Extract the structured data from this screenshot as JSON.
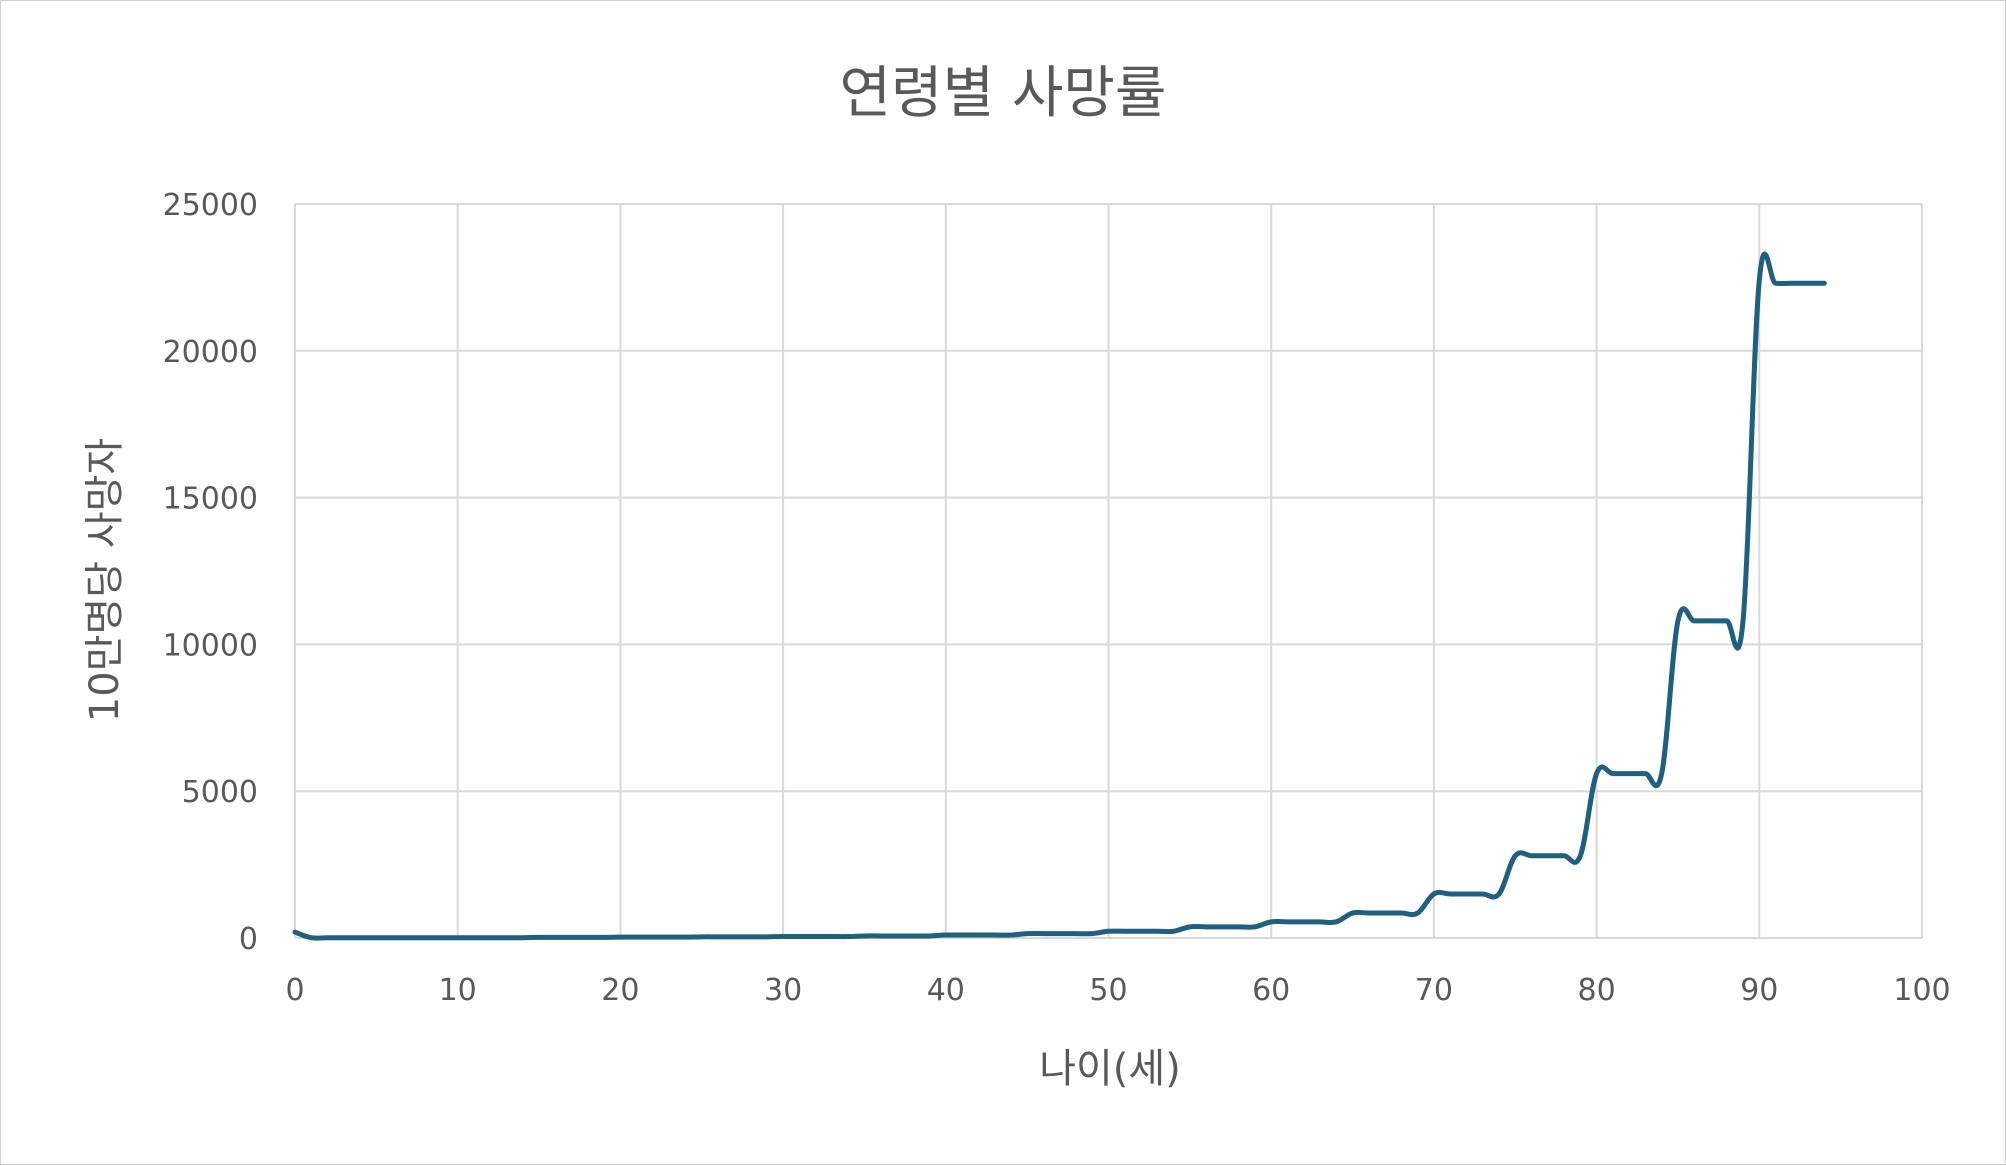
{
  "chart_data": {
    "type": "line",
    "title": "연령별 사망률",
    "xlabel": "나이(세)",
    "ylabel": "10만명당 사망자",
    "xlim": [
      0,
      100
    ],
    "ylim": [
      0,
      25000
    ],
    "x_ticks": [
      "0",
      "10",
      "20",
      "30",
      "40",
      "50",
      "60",
      "70",
      "80",
      "90",
      "100"
    ],
    "y_ticks": [
      "0",
      "5000",
      "10000",
      "15000",
      "20000",
      "25000"
    ],
    "grid": true,
    "legend": "none",
    "line_color": "#1f5f7f",
    "series": [
      {
        "x": [
          0,
          1,
          2,
          3,
          4,
          5,
          6,
          7,
          8,
          9,
          10,
          11,
          12,
          13,
          14,
          15,
          16,
          17,
          18,
          19,
          20,
          21,
          22,
          23,
          24,
          25,
          26,
          27,
          28,
          29,
          30,
          31,
          32,
          33,
          34,
          35,
          36,
          37,
          38,
          39,
          40,
          41,
          42,
          43,
          44,
          45,
          46,
          47,
          48,
          49,
          50,
          51,
          52,
          53,
          54,
          55,
          56,
          57,
          58,
          59,
          60,
          61,
          62,
          63,
          64,
          65,
          66,
          67,
          68,
          69,
          70,
          71,
          72,
          73,
          74,
          75,
          76,
          77,
          78,
          79,
          80,
          81,
          82,
          83,
          84,
          85,
          86,
          87,
          88,
          89,
          90,
          91,
          92,
          93,
          94
        ],
        "values": [
          200,
          10,
          10,
          10,
          10,
          10,
          10,
          10,
          10,
          10,
          10,
          10,
          10,
          10,
          10,
          20,
          20,
          20,
          20,
          20,
          30,
          30,
          30,
          30,
          30,
          40,
          40,
          40,
          40,
          40,
          50,
          50,
          50,
          50,
          50,
          70,
          70,
          70,
          70,
          70,
          100,
          100,
          100,
          100,
          100,
          150,
          150,
          150,
          150,
          150,
          230,
          230,
          230,
          230,
          230,
          380,
          380,
          380,
          380,
          380,
          550,
          550,
          550,
          550,
          550,
          850,
          850,
          850,
          850,
          850,
          1500,
          1500,
          1500,
          1500,
          1500,
          2800,
          2800,
          2800,
          2800,
          2800,
          5600,
          5600,
          5600,
          5600,
          5600,
          10800,
          10800,
          10800,
          10800,
          10800,
          22400,
          22300,
          22300,
          22300,
          22300
        ]
      }
    ]
  }
}
